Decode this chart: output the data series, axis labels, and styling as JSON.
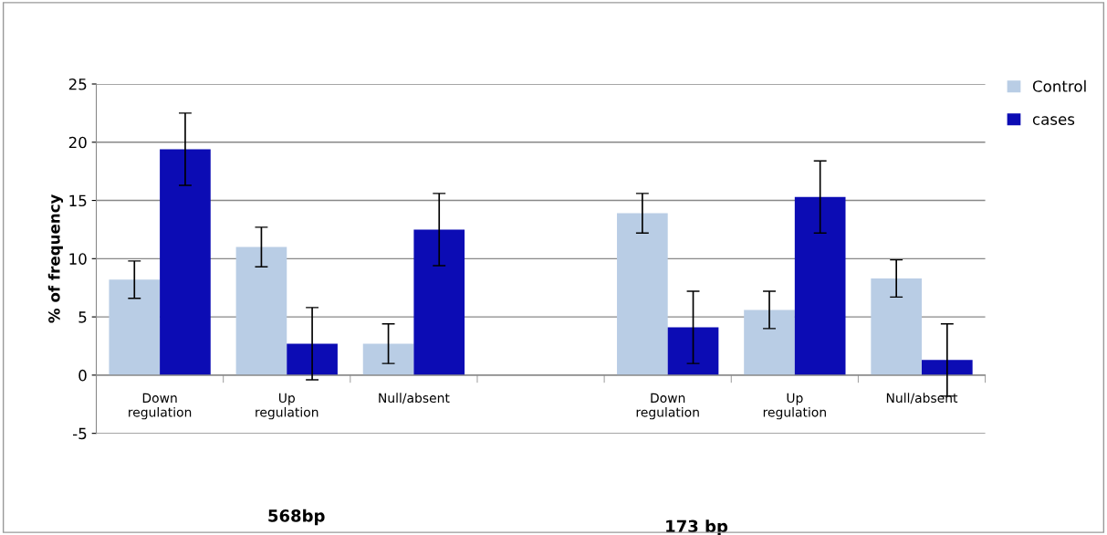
{
  "chart_data": {
    "type": "bar",
    "categories": [
      "Down\nregulation",
      "Up\nregulation",
      "Null/absent",
      null,
      "Down\nregulation",
      "Up\nregulation",
      "Null/absent"
    ],
    "series": [
      {
        "name": "Control",
        "color": "#b9cde5",
        "values": [
          8.2,
          11.0,
          2.7,
          null,
          13.9,
          5.6,
          8.3
        ],
        "errors": [
          1.6,
          1.7,
          1.7,
          null,
          1.7,
          1.6,
          1.6
        ]
      },
      {
        "name": "cases",
        "color": "#0c0cb4",
        "values": [
          19.4,
          2.7,
          12.5,
          null,
          4.1,
          15.3,
          1.3
        ],
        "errors": [
          3.1,
          3.1,
          3.1,
          null,
          3.1,
          3.1,
          3.1
        ]
      }
    ],
    "ylabel": "% of frequency",
    "ylim": [
      -5,
      25
    ],
    "yticks": [
      -5,
      0,
      5,
      10,
      15,
      20,
      25
    ],
    "grid": "y",
    "legend": "top right",
    "annotations": [
      "568bp",
      "173 bp"
    ]
  }
}
